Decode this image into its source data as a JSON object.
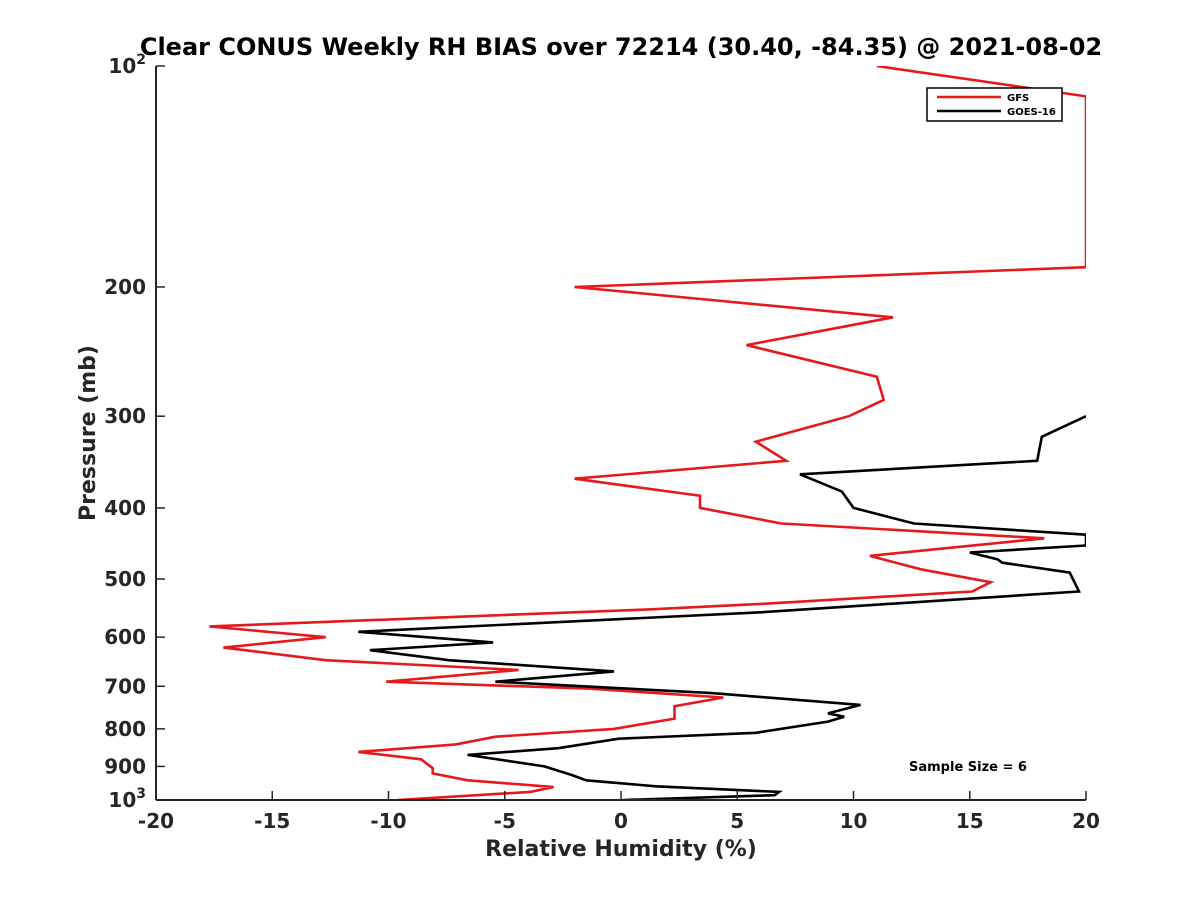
{
  "chart_data": {
    "type": "line",
    "title": "Clear CONUS Weekly RH BIAS over 72214 (30.40, -84.35) @ 2021-08-02",
    "xlabel": "Relative Humidity (%)",
    "ylabel": "Pressure (mb)",
    "xlim": [
      -20,
      20
    ],
    "ylim": [
      100,
      1000
    ],
    "yscale": "log",
    "yreversed": true,
    "x_ticks": [
      "-20",
      "-15",
      "-10",
      "-5",
      "0",
      "5",
      "10",
      "15",
      "20"
    ],
    "y_ticks": [
      {
        "value": 100,
        "label": "10",
        "sup": "2"
      },
      {
        "value": 200,
        "label": "200",
        "sup": ""
      },
      {
        "value": 300,
        "label": "300",
        "sup": ""
      },
      {
        "value": 400,
        "label": "400",
        "sup": ""
      },
      {
        "value": 500,
        "label": "500",
        "sup": ""
      },
      {
        "value": 600,
        "label": "600",
        "sup": ""
      },
      {
        "value": 700,
        "label": "700",
        "sup": ""
      },
      {
        "value": 800,
        "label": "800",
        "sup": ""
      },
      {
        "value": 900,
        "label": "900",
        "sup": ""
      },
      {
        "value": 1000,
        "label": "10",
        "sup": "3"
      }
    ],
    "legend_position": "top-right",
    "series": [
      {
        "name": "GFS",
        "color": "#e41a1c",
        "points": [
          [
            11,
            100
          ],
          [
            20,
            110
          ],
          [
            20,
            188
          ],
          [
            -2,
            200
          ],
          [
            11.7,
            220
          ],
          [
            5.4,
            240
          ],
          [
            11,
            265
          ],
          [
            11.3,
            285
          ],
          [
            9.8,
            300
          ],
          [
            5.8,
            325
          ],
          [
            7.1,
            345
          ],
          [
            -2,
            365
          ],
          [
            3.4,
            385
          ],
          [
            3.4,
            400
          ],
          [
            6.9,
            420
          ],
          [
            18.2,
            440
          ],
          [
            10.7,
            465
          ],
          [
            12.9,
            485
          ],
          [
            15.9,
            505
          ],
          [
            15.1,
            520
          ],
          [
            6.3,
            540
          ],
          [
            1.2,
            550
          ],
          [
            -17.7,
            580
          ],
          [
            -12.7,
            600
          ],
          [
            -17.1,
            620
          ],
          [
            -12.7,
            645
          ],
          [
            -4.4,
            665
          ],
          [
            -10.1,
            690
          ],
          [
            -1.4,
            705
          ],
          [
            4.4,
            725
          ],
          [
            2.3,
            745
          ],
          [
            2.3,
            775
          ],
          [
            -0.3,
            800
          ],
          [
            -5.4,
            820
          ],
          [
            -7.1,
            840
          ],
          [
            -11.3,
            860
          ],
          [
            -8.6,
            880
          ],
          [
            -8.1,
            905
          ],
          [
            -8.1,
            920
          ],
          [
            -6.6,
            940
          ],
          [
            -2.9,
            960
          ],
          [
            -3.9,
            975
          ],
          [
            -9.6,
            1000
          ]
        ]
      },
      {
        "name": "GOES-16",
        "color": "#000000",
        "points": [
          [
            20,
            300
          ],
          [
            18.1,
            320
          ],
          [
            17.9,
            345
          ],
          [
            7.7,
            360
          ],
          [
            9.5,
            380
          ],
          [
            10,
            400
          ],
          [
            12.6,
            420
          ],
          [
            20,
            435
          ],
          [
            20,
            450
          ],
          [
            15,
            460
          ],
          [
            16.2,
            470
          ],
          [
            16.4,
            475
          ],
          [
            19.3,
            490
          ],
          [
            19.7,
            520
          ],
          [
            6,
            555
          ],
          [
            -11.3,
            590
          ],
          [
            -5.5,
            610
          ],
          [
            -10.8,
            625
          ],
          [
            -7.4,
            645
          ],
          [
            -0.3,
            668
          ],
          [
            -5.4,
            690
          ],
          [
            3.9,
            715
          ],
          [
            10.3,
            742
          ],
          [
            8.9,
            762
          ],
          [
            9.6,
            770
          ],
          [
            8.9,
            782
          ],
          [
            5.8,
            810
          ],
          [
            -0.1,
            825
          ],
          [
            -2.7,
            850
          ],
          [
            -6.6,
            868
          ],
          [
            -3.3,
            900
          ],
          [
            -2.1,
            925
          ],
          [
            -1.5,
            940
          ],
          [
            1.5,
            958
          ],
          [
            6.8,
            975
          ],
          [
            6.6,
            985
          ],
          [
            0.1,
            1000
          ]
        ]
      }
    ],
    "annotation": "Sample Size = 6"
  }
}
